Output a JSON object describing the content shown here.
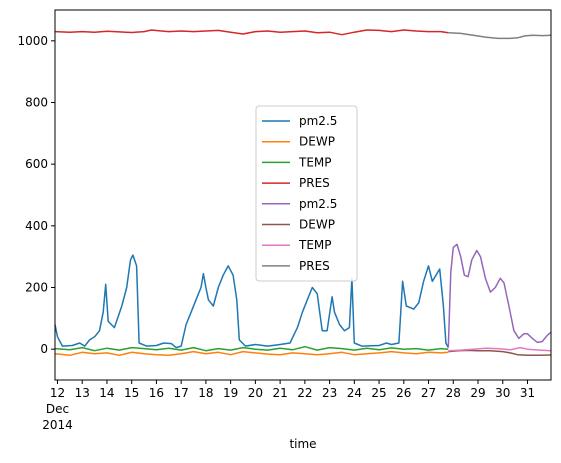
{
  "chart_data": {
    "type": "line",
    "xlabel": "time",
    "ylabel": "",
    "title": "",
    "x_domain": [
      11.9,
      31.95
    ],
    "ylim": [
      -100,
      1100
    ],
    "y_ticks": [
      0,
      200,
      400,
      600,
      800,
      1000
    ],
    "x_ticks": [
      {
        "value": 12,
        "label": "12",
        "sub1": "Dec",
        "sub2": "2014"
      },
      {
        "value": 13,
        "label": "13"
      },
      {
        "value": 14,
        "label": "14"
      },
      {
        "value": 15,
        "label": "15"
      },
      {
        "value": 16,
        "label": "16"
      },
      {
        "value": 17,
        "label": "17"
      },
      {
        "value": 18,
        "label": "18"
      },
      {
        "value": 19,
        "label": "19"
      },
      {
        "value": 20,
        "label": "20"
      },
      {
        "value": 21,
        "label": "21"
      },
      {
        "value": 22,
        "label": "22"
      },
      {
        "value": 23,
        "label": "23"
      },
      {
        "value": 24,
        "label": "24"
      },
      {
        "value": 25,
        "label": "25"
      },
      {
        "value": 26,
        "label": "26"
      },
      {
        "value": 27,
        "label": "27"
      },
      {
        "value": 28,
        "label": "28"
      },
      {
        "value": 29,
        "label": "29"
      },
      {
        "value": 30,
        "label": "30"
      },
      {
        "value": 31,
        "label": "31"
      }
    ],
    "grid": false,
    "legend_position": "center",
    "series": [
      {
        "name": "pm2.5",
        "color": "#1f77b4",
        "points": [
          [
            11.9,
            80
          ],
          [
            12.0,
            40
          ],
          [
            12.2,
            10
          ],
          [
            12.6,
            12
          ],
          [
            12.9,
            20
          ],
          [
            13.1,
            10
          ],
          [
            13.3,
            30
          ],
          [
            13.5,
            40
          ],
          [
            13.7,
            60
          ],
          [
            13.85,
            120
          ],
          [
            13.95,
            210
          ],
          [
            14.05,
            90
          ],
          [
            14.3,
            70
          ],
          [
            14.6,
            140
          ],
          [
            14.8,
            200
          ],
          [
            14.95,
            290
          ],
          [
            15.05,
            305
          ],
          [
            15.2,
            270
          ],
          [
            15.3,
            20
          ],
          [
            15.6,
            10
          ],
          [
            16.0,
            12
          ],
          [
            16.3,
            20
          ],
          [
            16.6,
            18
          ],
          [
            16.8,
            5
          ],
          [
            17.0,
            10
          ],
          [
            17.2,
            80
          ],
          [
            17.4,
            120
          ],
          [
            17.6,
            160
          ],
          [
            17.8,
            200
          ],
          [
            17.9,
            245
          ],
          [
            18.0,
            200
          ],
          [
            18.1,
            160
          ],
          [
            18.3,
            140
          ],
          [
            18.5,
            200
          ],
          [
            18.7,
            240
          ],
          [
            18.9,
            270
          ],
          [
            19.1,
            240
          ],
          [
            19.25,
            160
          ],
          [
            19.35,
            30
          ],
          [
            19.6,
            10
          ],
          [
            20.0,
            15
          ],
          [
            20.5,
            10
          ],
          [
            21.0,
            15
          ],
          [
            21.4,
            20
          ],
          [
            21.7,
            70
          ],
          [
            21.9,
            120
          ],
          [
            22.1,
            160
          ],
          [
            22.3,
            200
          ],
          [
            22.5,
            180
          ],
          [
            22.7,
            60
          ],
          [
            22.9,
            60
          ],
          [
            23.1,
            170
          ],
          [
            23.2,
            120
          ],
          [
            23.4,
            80
          ],
          [
            23.6,
            60
          ],
          [
            23.8,
            70
          ],
          [
            23.9,
            230
          ],
          [
            24.0,
            20
          ],
          [
            24.3,
            10
          ],
          [
            25.0,
            12
          ],
          [
            25.3,
            20
          ],
          [
            25.5,
            15
          ],
          [
            25.8,
            20
          ],
          [
            25.95,
            220
          ],
          [
            26.1,
            140
          ],
          [
            26.4,
            130
          ],
          [
            26.6,
            150
          ],
          [
            26.8,
            220
          ],
          [
            27.0,
            270
          ],
          [
            27.15,
            220
          ],
          [
            27.3,
            240
          ],
          [
            27.45,
            260
          ],
          [
            27.6,
            140
          ],
          [
            27.7,
            20
          ],
          [
            27.8,
            5
          ]
        ]
      },
      {
        "name": "DEWP",
        "color": "#ff7f0e",
        "points": [
          [
            11.9,
            -15
          ],
          [
            12.5,
            -20
          ],
          [
            13.0,
            -10
          ],
          [
            13.5,
            -15
          ],
          [
            14.0,
            -12
          ],
          [
            14.5,
            -20
          ],
          [
            15.0,
            -10
          ],
          [
            15.5,
            -15
          ],
          [
            16.0,
            -18
          ],
          [
            16.5,
            -20
          ],
          [
            17.0,
            -15
          ],
          [
            17.5,
            -8
          ],
          [
            18.0,
            -15
          ],
          [
            18.5,
            -10
          ],
          [
            19.0,
            -18
          ],
          [
            19.5,
            -8
          ],
          [
            20.0,
            -12
          ],
          [
            20.5,
            -16
          ],
          [
            21.0,
            -18
          ],
          [
            21.5,
            -12
          ],
          [
            22.0,
            -15
          ],
          [
            22.5,
            -18
          ],
          [
            23.0,
            -15
          ],
          [
            23.5,
            -10
          ],
          [
            24.0,
            -18
          ],
          [
            24.5,
            -15
          ],
          [
            25.0,
            -12
          ],
          [
            25.5,
            -8
          ],
          [
            26.0,
            -12
          ],
          [
            26.5,
            -15
          ],
          [
            27.0,
            -10
          ],
          [
            27.5,
            -12
          ],
          [
            27.8,
            -10
          ]
        ]
      },
      {
        "name": "TEMP",
        "color": "#2ca02c",
        "points": [
          [
            11.9,
            2
          ],
          [
            12.5,
            -2
          ],
          [
            13.0,
            5
          ],
          [
            13.5,
            -5
          ],
          [
            14.0,
            3
          ],
          [
            14.5,
            -3
          ],
          [
            15.0,
            5
          ],
          [
            15.5,
            2
          ],
          [
            16.0,
            -2
          ],
          [
            16.5,
            3
          ],
          [
            17.0,
            -3
          ],
          [
            17.5,
            5
          ],
          [
            18.0,
            -5
          ],
          [
            18.5,
            2
          ],
          [
            19.0,
            -3
          ],
          [
            19.5,
            5
          ],
          [
            20.0,
            0
          ],
          [
            20.5,
            -3
          ],
          [
            21.0,
            3
          ],
          [
            21.5,
            -2
          ],
          [
            22.0,
            8
          ],
          [
            22.5,
            -3
          ],
          [
            23.0,
            5
          ],
          [
            23.5,
            2
          ],
          [
            24.0,
            -3
          ],
          [
            24.5,
            3
          ],
          [
            25.0,
            -2
          ],
          [
            25.5,
            4
          ],
          [
            26.0,
            0
          ],
          [
            26.5,
            2
          ],
          [
            27.0,
            -3
          ],
          [
            27.5,
            2
          ],
          [
            27.8,
            0
          ]
        ]
      },
      {
        "name": "PRES",
        "color": "#d62728",
        "points": [
          [
            11.9,
            1030
          ],
          [
            12.5,
            1028
          ],
          [
            13.0,
            1030
          ],
          [
            13.5,
            1028
          ],
          [
            14.0,
            1031
          ],
          [
            14.5,
            1029
          ],
          [
            15.0,
            1027
          ],
          [
            15.5,
            1030
          ],
          [
            15.8,
            1035
          ],
          [
            16.2,
            1032
          ],
          [
            16.5,
            1030
          ],
          [
            17.0,
            1032
          ],
          [
            17.5,
            1030
          ],
          [
            18.0,
            1032
          ],
          [
            18.5,
            1034
          ],
          [
            19.0,
            1028
          ],
          [
            19.5,
            1022
          ],
          [
            20.0,
            1030
          ],
          [
            20.5,
            1032
          ],
          [
            21.0,
            1028
          ],
          [
            21.5,
            1030
          ],
          [
            22.0,
            1032
          ],
          [
            22.5,
            1026
          ],
          [
            23.0,
            1028
          ],
          [
            23.5,
            1020
          ],
          [
            24.0,
            1028
          ],
          [
            24.5,
            1035
          ],
          [
            25.0,
            1034
          ],
          [
            25.5,
            1030
          ],
          [
            26.0,
            1035
          ],
          [
            26.5,
            1032
          ],
          [
            27.0,
            1030
          ],
          [
            27.5,
            1030
          ],
          [
            27.8,
            1026
          ]
        ]
      },
      {
        "name": "pm2.5",
        "color": "#9467bd",
        "points": [
          [
            27.8,
            5
          ],
          [
            27.9,
            250
          ],
          [
            28.0,
            330
          ],
          [
            28.15,
            340
          ],
          [
            28.3,
            300
          ],
          [
            28.45,
            240
          ],
          [
            28.6,
            235
          ],
          [
            28.75,
            290
          ],
          [
            28.95,
            320
          ],
          [
            29.1,
            300
          ],
          [
            29.3,
            230
          ],
          [
            29.5,
            185
          ],
          [
            29.7,
            200
          ],
          [
            29.9,
            230
          ],
          [
            30.05,
            215
          ],
          [
            30.25,
            140
          ],
          [
            30.45,
            60
          ],
          [
            30.65,
            35
          ],
          [
            30.85,
            50
          ],
          [
            31.0,
            50
          ],
          [
            31.2,
            35
          ],
          [
            31.4,
            22
          ],
          [
            31.6,
            25
          ],
          [
            31.8,
            45
          ],
          [
            31.95,
            55
          ]
        ]
      },
      {
        "name": "DEWP",
        "color": "#8c564b",
        "points": [
          [
            27.8,
            -8
          ],
          [
            28.2,
            -5
          ],
          [
            28.6,
            -4
          ],
          [
            29.0,
            -5
          ],
          [
            29.5,
            -5
          ],
          [
            30.0,
            -8
          ],
          [
            30.3,
            -12
          ],
          [
            30.6,
            -18
          ],
          [
            31.0,
            -20
          ],
          [
            31.5,
            -20
          ],
          [
            31.95,
            -19
          ]
        ]
      },
      {
        "name": "TEMP",
        "color": "#e377c2",
        "points": [
          [
            27.8,
            -5
          ],
          [
            28.3,
            -3
          ],
          [
            28.8,
            0
          ],
          [
            29.3,
            3
          ],
          [
            29.8,
            2
          ],
          [
            30.3,
            -2
          ],
          [
            30.7,
            5
          ],
          [
            31.0,
            0
          ],
          [
            31.5,
            -3
          ],
          [
            31.95,
            -5
          ]
        ]
      },
      {
        "name": "PRES",
        "color": "#7f7f7f",
        "points": [
          [
            27.8,
            1026
          ],
          [
            28.3,
            1024
          ],
          [
            28.8,
            1018
          ],
          [
            29.3,
            1012
          ],
          [
            29.8,
            1008
          ],
          [
            30.3,
            1008
          ],
          [
            30.6,
            1010
          ],
          [
            30.9,
            1016
          ],
          [
            31.2,
            1018
          ],
          [
            31.6,
            1017
          ],
          [
            31.95,
            1018
          ]
        ]
      }
    ]
  }
}
